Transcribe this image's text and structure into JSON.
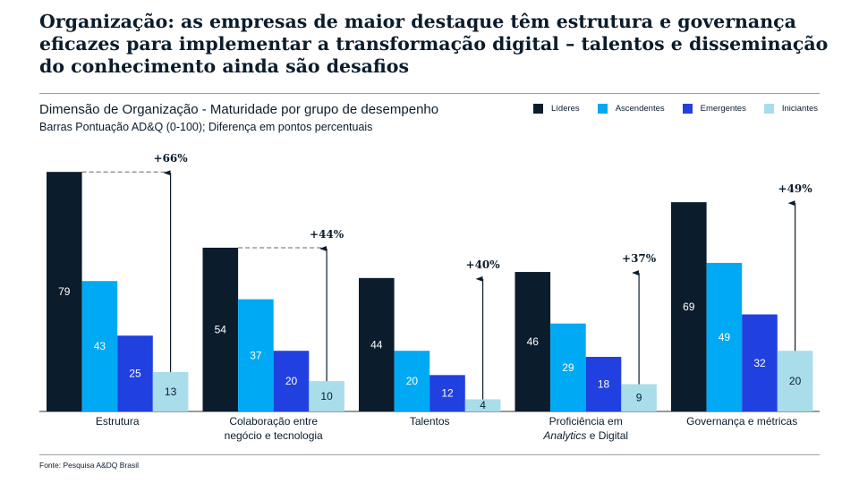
{
  "title": "Organização: as empresas de maior destaque têm estrutura e governança eficazes para implementar a transformação digital – talentos e disseminação do conhecimento ainda são desafios",
  "subtitle": "Dimensão de Organização - Maturidade por grupo de desempenho",
  "subtitle2": "Barras Pontuação AD&Q (0-100); Diferença em pontos percentuais",
  "source": "Fonte: Pesquisa A&DQ Brasil",
  "chart_data": {
    "type": "bar",
    "ylim": [
      0,
      100
    ],
    "categories": [
      {
        "line1": "Estrutura",
        "line2": "",
        "italic": ""
      },
      {
        "line1": "Colaboração entre",
        "line2": "negócio e tecnologia",
        "italic": ""
      },
      {
        "line1": "Talentos",
        "line2": "",
        "italic": ""
      },
      {
        "line1": "Proficiência em",
        "line2": " e Digital",
        "italic": "Analytics"
      },
      {
        "line1": "Governança e métricas",
        "line2": "",
        "italic": ""
      }
    ],
    "series": [
      {
        "name": "Líderes",
        "color": "#0b1c2c",
        "values": [
          79,
          54,
          44,
          46,
          69
        ]
      },
      {
        "name": "Ascendentes",
        "color": "#00a9f4",
        "values": [
          43,
          37,
          20,
          29,
          49
        ]
      },
      {
        "name": "Emergentes",
        "color": "#2140e0",
        "values": [
          25,
          20,
          12,
          18,
          32
        ]
      },
      {
        "name": "Iniciantes",
        "color": "#a8dde9",
        "values": [
          13,
          10,
          4,
          9,
          20
        ]
      }
    ],
    "annotations": [
      {
        "text": "+66%",
        "dashed": true
      },
      {
        "text": "+44%",
        "dashed": true
      },
      {
        "text": "+40%",
        "dashed": false
      },
      {
        "text": "+37%",
        "dashed": false
      },
      {
        "text": "+49%",
        "dashed": false
      }
    ],
    "legend": "top-right",
    "grid": false
  }
}
